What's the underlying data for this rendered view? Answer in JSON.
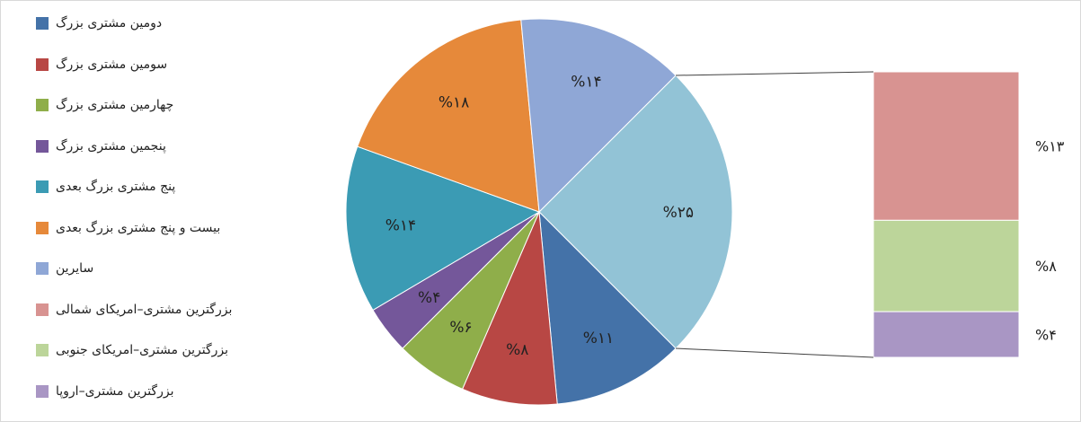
{
  "chart_data": {
    "type": "pie",
    "title": "",
    "legend": [
      {
        "label": "دومین مشتری بزرگ",
        "color": "#4472a8"
      },
      {
        "label": "سومین مشتری بزرگ",
        "color": "#b84744"
      },
      {
        "label": "چهارمین مشتری بزرگ",
        "color": "#8fae4a"
      },
      {
        "label": "پنجمین مشتری بزرگ",
        "color": "#74579a"
      },
      {
        "label": "پنج مشتری بزرگ بعدی",
        "color": "#3b9bb4"
      },
      {
        "label": "بیست و پنج مشتری بزرگ بعدی",
        "color": "#e6893a"
      },
      {
        "label": "سایرین",
        "color": "#8fa7d6"
      },
      {
        "label": "بزرگترین مشتری–امریکای شمالی",
        "color": "#d89391"
      },
      {
        "label": "بزرگترین مشتری–امریکای جنوبی",
        "color": "#bcd59a"
      },
      {
        "label": "بزرگترین مشتری–اروپا",
        "color": "#a996c4"
      }
    ],
    "pie": {
      "slices": [
        {
          "name": "بزرگترین مشتری",
          "value": 25,
          "label": "%۲۵",
          "color": "#92c3d6"
        },
        {
          "name": "دومین مشتری بزرگ",
          "value": 11,
          "label": "%۱۱",
          "color": "#4472a8"
        },
        {
          "name": "سومین مشتری بزرگ",
          "value": 8,
          "label": "%۸",
          "color": "#b84744"
        },
        {
          "name": "چهارمین مشتری بزرگ",
          "value": 6,
          "label": "%۶",
          "color": "#8fae4a"
        },
        {
          "name": "پنجمین مشتری بزرگ",
          "value": 4,
          "label": "%۴",
          "color": "#74579a"
        },
        {
          "name": "پنج مشتری بزرگ بعدی",
          "value": 14,
          "label": "%۱۴",
          "color": "#3b9bb4"
        },
        {
          "name": "بیست و پنج مشتری بزرگ بعدی",
          "value": 18,
          "label": "%۱۸",
          "color": "#e6893a"
        },
        {
          "name": "سایرین",
          "value": 14,
          "label": "%۱۴",
          "color": "#8fa7d6"
        }
      ]
    },
    "breakdown_bar": {
      "segments": [
        {
          "name": "بزرگترین مشتری–امریکای شمالی",
          "value": 13,
          "label": "%۱۳",
          "color": "#d89391"
        },
        {
          "name": "بزرگترین مشتری–امریکای جنوبی",
          "value": 8,
          "label": "%۸",
          "color": "#bcd59a"
        },
        {
          "name": "بزرگترین مشتری–اروپا",
          "value": 4,
          "label": "%۴",
          "color": "#a996c4"
        }
      ]
    }
  }
}
